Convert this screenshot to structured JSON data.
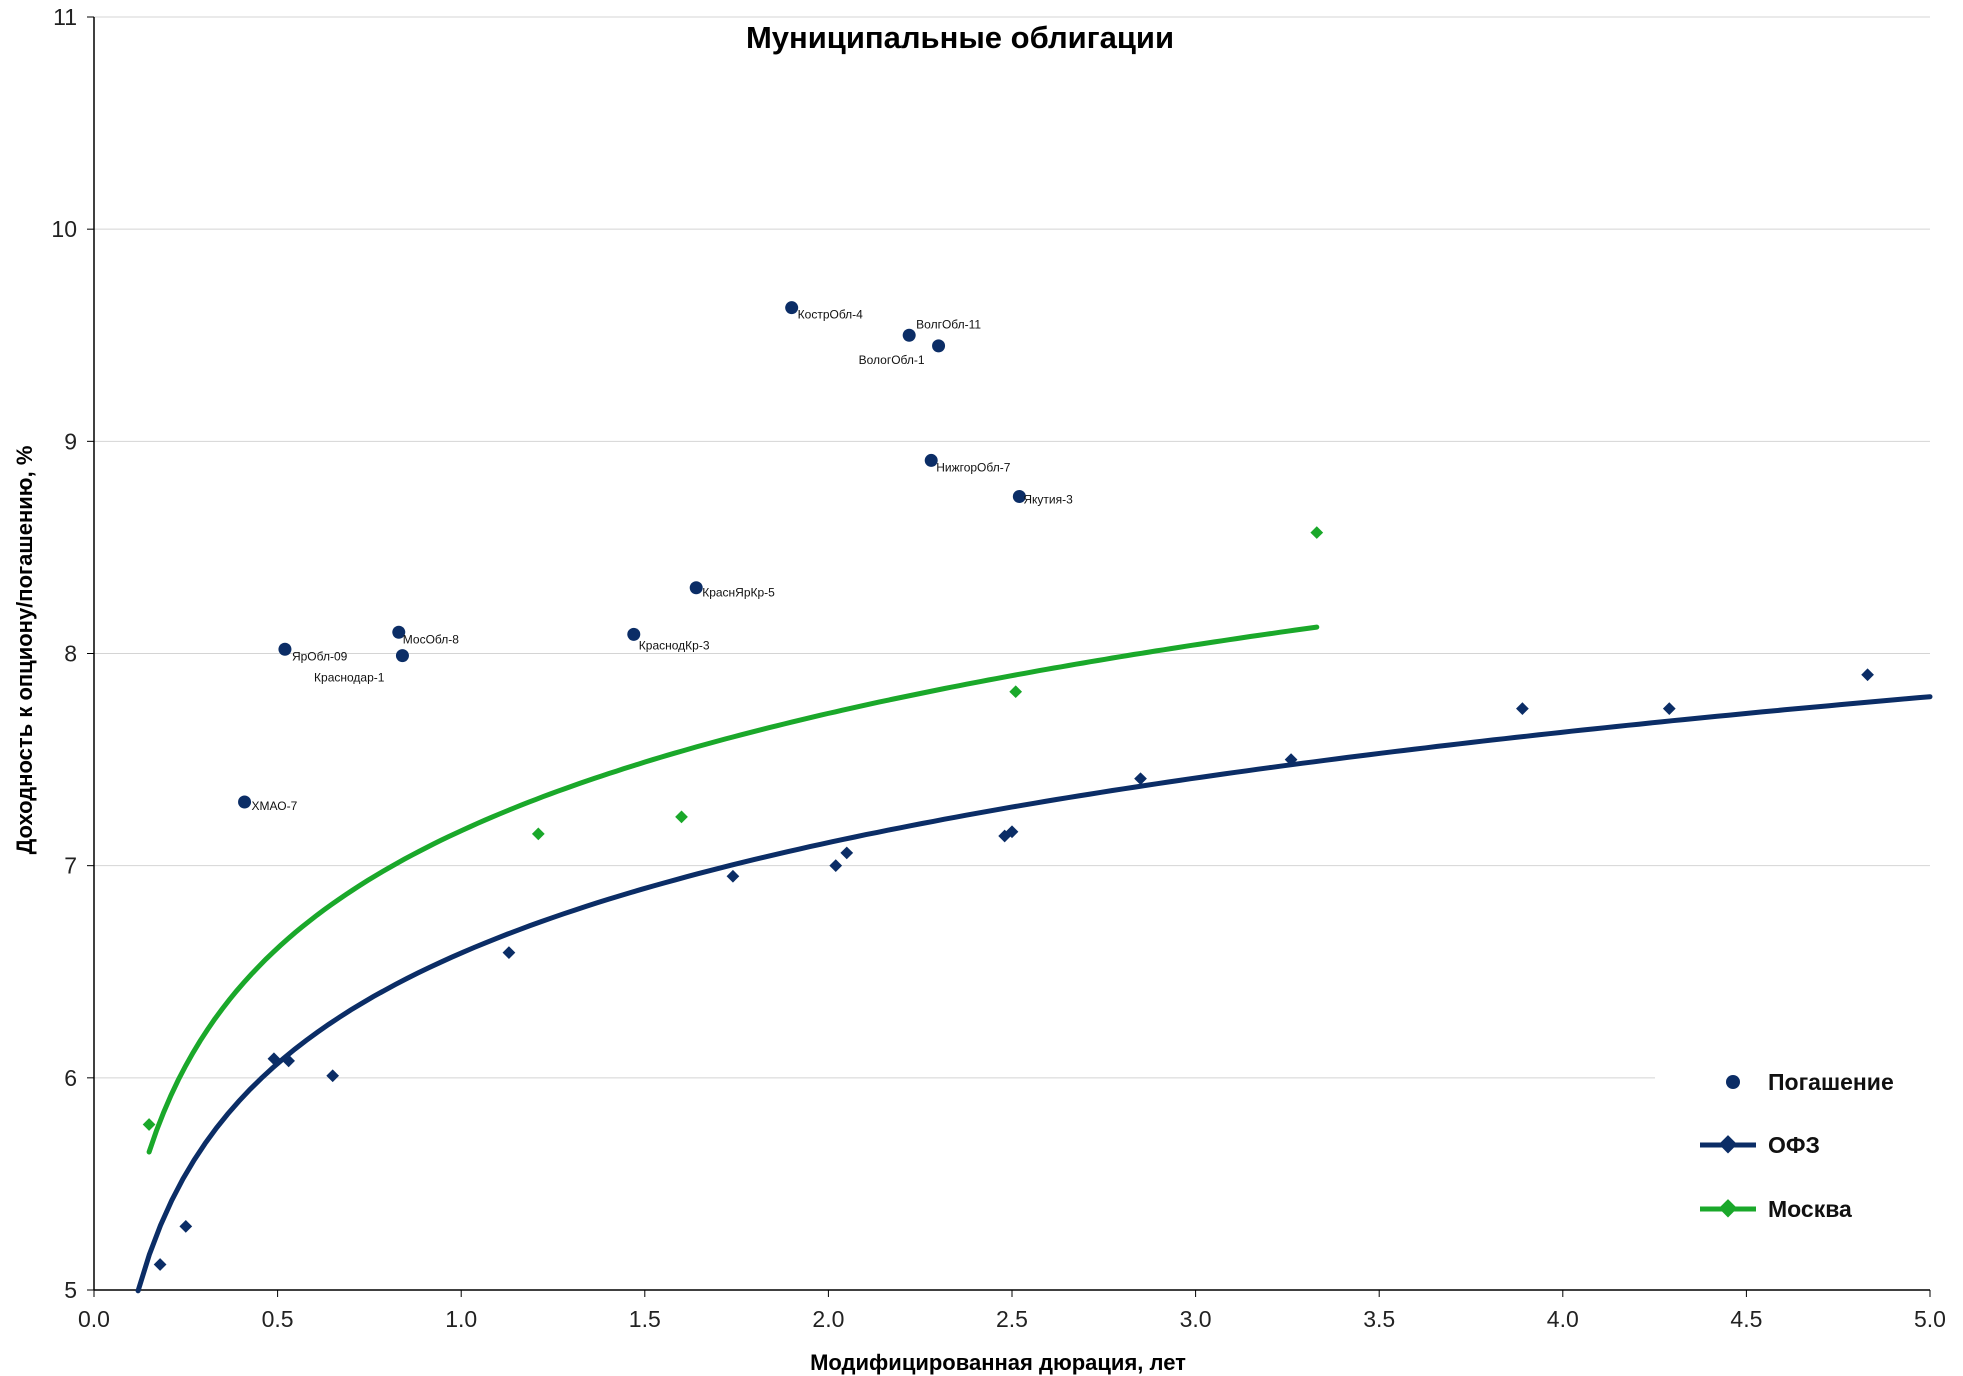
{
  "chart_data": {
    "type": "scatter",
    "title": "Муниципальные облигации",
    "xlabel": "Модифицированная дюрация, лет",
    "ylabel": "Доходность к опциону/погашению, %",
    "xlim": [
      0,
      5
    ],
    "ylim": [
      5,
      11
    ],
    "x_ticks": [
      "0.0",
      "0.5",
      "1.0",
      "1.5",
      "2.0",
      "2.5",
      "3.0",
      "3.5",
      "4.0",
      "4.5",
      "5.0"
    ],
    "y_ticks": [
      "5",
      "6",
      "7",
      "8",
      "9",
      "10",
      "11"
    ],
    "grid": "horizontal",
    "legend_position": "right",
    "colors": {
      "navy": "#0b2d66",
      "green": "#1aa82a"
    },
    "series": [
      {
        "name": "Погашение",
        "marker": "circle",
        "color": "#0b2d66",
        "points": [
          {
            "x": 0.41,
            "y": 7.3,
            "label": "ХМАО-7"
          },
          {
            "x": 0.52,
            "y": 8.02,
            "label": "ЯрОбл-09"
          },
          {
            "x": 0.83,
            "y": 8.1,
            "label": "МосОбл-8"
          },
          {
            "x": 0.84,
            "y": 7.99,
            "label": "Краснодар-1"
          },
          {
            "x": 1.47,
            "y": 8.09,
            "label": "КраснодКр-3"
          },
          {
            "x": 1.64,
            "y": 8.31,
            "label": "КраснЯрКр-5"
          },
          {
            "x": 1.9,
            "y": 9.63,
            "label": "КострОбл-4"
          },
          {
            "x": 2.22,
            "y": 9.5,
            "label": "ВолгОбл-11"
          },
          {
            "x": 2.3,
            "y": 9.45,
            "label": "ВологОбл-1"
          },
          {
            "x": 2.28,
            "y": 8.91,
            "label": "НижгорОбл-7"
          },
          {
            "x": 2.52,
            "y": 8.74,
            "label": "Якутия-3"
          }
        ]
      },
      {
        "name": "ОФЗ",
        "marker": "diamond",
        "color": "#0b2d66",
        "points": [
          {
            "x": 0.18,
            "y": 5.12
          },
          {
            "x": 0.25,
            "y": 5.3
          },
          {
            "x": 0.49,
            "y": 6.09
          },
          {
            "x": 0.53,
            "y": 6.08
          },
          {
            "x": 0.65,
            "y": 6.01
          },
          {
            "x": 1.13,
            "y": 6.59
          },
          {
            "x": 1.74,
            "y": 6.95
          },
          {
            "x": 2.02,
            "y": 7.0
          },
          {
            "x": 2.05,
            "y": 7.06
          },
          {
            "x": 2.48,
            "y": 7.14
          },
          {
            "x": 2.5,
            "y": 7.16
          },
          {
            "x": 2.85,
            "y": 7.41
          },
          {
            "x": 3.26,
            "y": 7.5
          },
          {
            "x": 3.89,
            "y": 7.74
          },
          {
            "x": 4.29,
            "y": 7.74
          },
          {
            "x": 4.83,
            "y": 7.9
          }
        ],
        "trend": {
          "type": "log",
          "x_range": [
            0.12,
            5.0
          ],
          "samples": [
            [
              0.12,
              5.0
            ],
            [
              0.5,
              6.04
            ],
            [
              1.0,
              6.62
            ],
            [
              2.0,
              7.11
            ],
            [
              3.0,
              7.41
            ],
            [
              4.0,
              7.63
            ],
            [
              5.0,
              7.79
            ]
          ]
        }
      },
      {
        "name": "Москва",
        "marker": "diamond",
        "color": "#1aa82a",
        "points": [
          {
            "x": 0.15,
            "y": 5.78
          },
          {
            "x": 1.21,
            "y": 7.15
          },
          {
            "x": 1.6,
            "y": 7.23
          },
          {
            "x": 2.51,
            "y": 7.82
          },
          {
            "x": 3.33,
            "y": 8.57
          }
        ],
        "trend": {
          "type": "log",
          "x_range": [
            0.15,
            3.33
          ],
          "samples": [
            [
              0.15,
              5.65
            ],
            [
              0.5,
              6.6
            ],
            [
              1.0,
              7.18
            ],
            [
              2.0,
              7.73
            ],
            [
              3.0,
              8.03
            ],
            [
              3.33,
              8.12
            ]
          ]
        }
      }
    ]
  }
}
